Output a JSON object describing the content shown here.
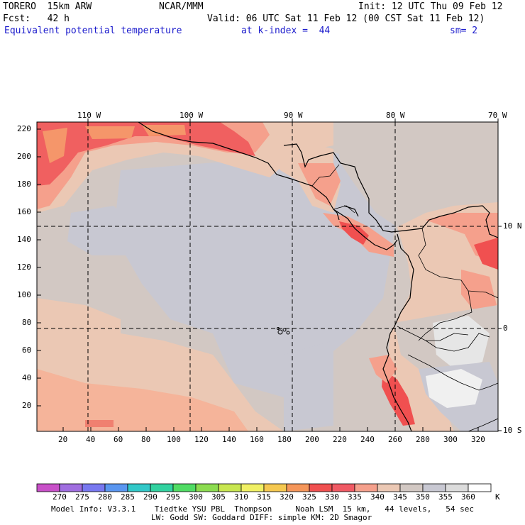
{
  "header": {
    "model": "TORERO  15km ARW",
    "org": "NCAR/MMM",
    "init": "Init: 12 UTC Thu 09 Feb 12",
    "fcst": "Fcst:   42 h",
    "valid": "Valid: 06 UTC Sat 11 Feb 12 (00 CST Sat 11 Feb 12)",
    "field": "Equivalent potential temperature",
    "level": "at k-index =  44",
    "smooth": "sm= 2"
  },
  "map": {
    "top_lon_labels": [
      "110 W",
      "100 W",
      "90 W",
      "80 W",
      "70 W"
    ],
    "right_lat_labels": [
      "10 N",
      "0",
      "10 S"
    ],
    "left_ticks": [
      "220",
      "200",
      "180",
      "160",
      "140",
      "120",
      "100",
      "80",
      "60",
      "40",
      "20"
    ],
    "bottom_ticks": [
      "20",
      "40",
      "60",
      "80",
      "100",
      "120",
      "140",
      "160",
      "180",
      "200",
      "220",
      "240",
      "260",
      "280",
      "300",
      "320"
    ]
  },
  "colorbar": {
    "labels": [
      "270",
      "275",
      "280",
      "285",
      "290",
      "295",
      "300",
      "305",
      "310",
      "315",
      "320",
      "325",
      "330",
      "335",
      "340",
      "345",
      "350",
      "355",
      "360"
    ],
    "unit": "K",
    "colors": [
      "#c850c8",
      "#a06ee0",
      "#7878f0",
      "#5a96f0",
      "#32c8c8",
      "#32d2a0",
      "#50dc64",
      "#8cdc50",
      "#c8e650",
      "#f0f064",
      "#f5c850",
      "#f5965a",
      "#f05050",
      "#f05a64",
      "#f5a08c",
      "#ebc8b4",
      "#d2c8c3",
      "#c8c8d2",
      "#dcdcdc",
      "#ffffff"
    ]
  },
  "footer": {
    "line1": "Model Info: V3.3.1    Tiedtke YSU PBL  Thompson     Noah LSM  15 km,   44 levels,   54 sec",
    "line2": "LW: Godd SW: Goddard DIFF: simple KM: 2D Smagor"
  }
}
